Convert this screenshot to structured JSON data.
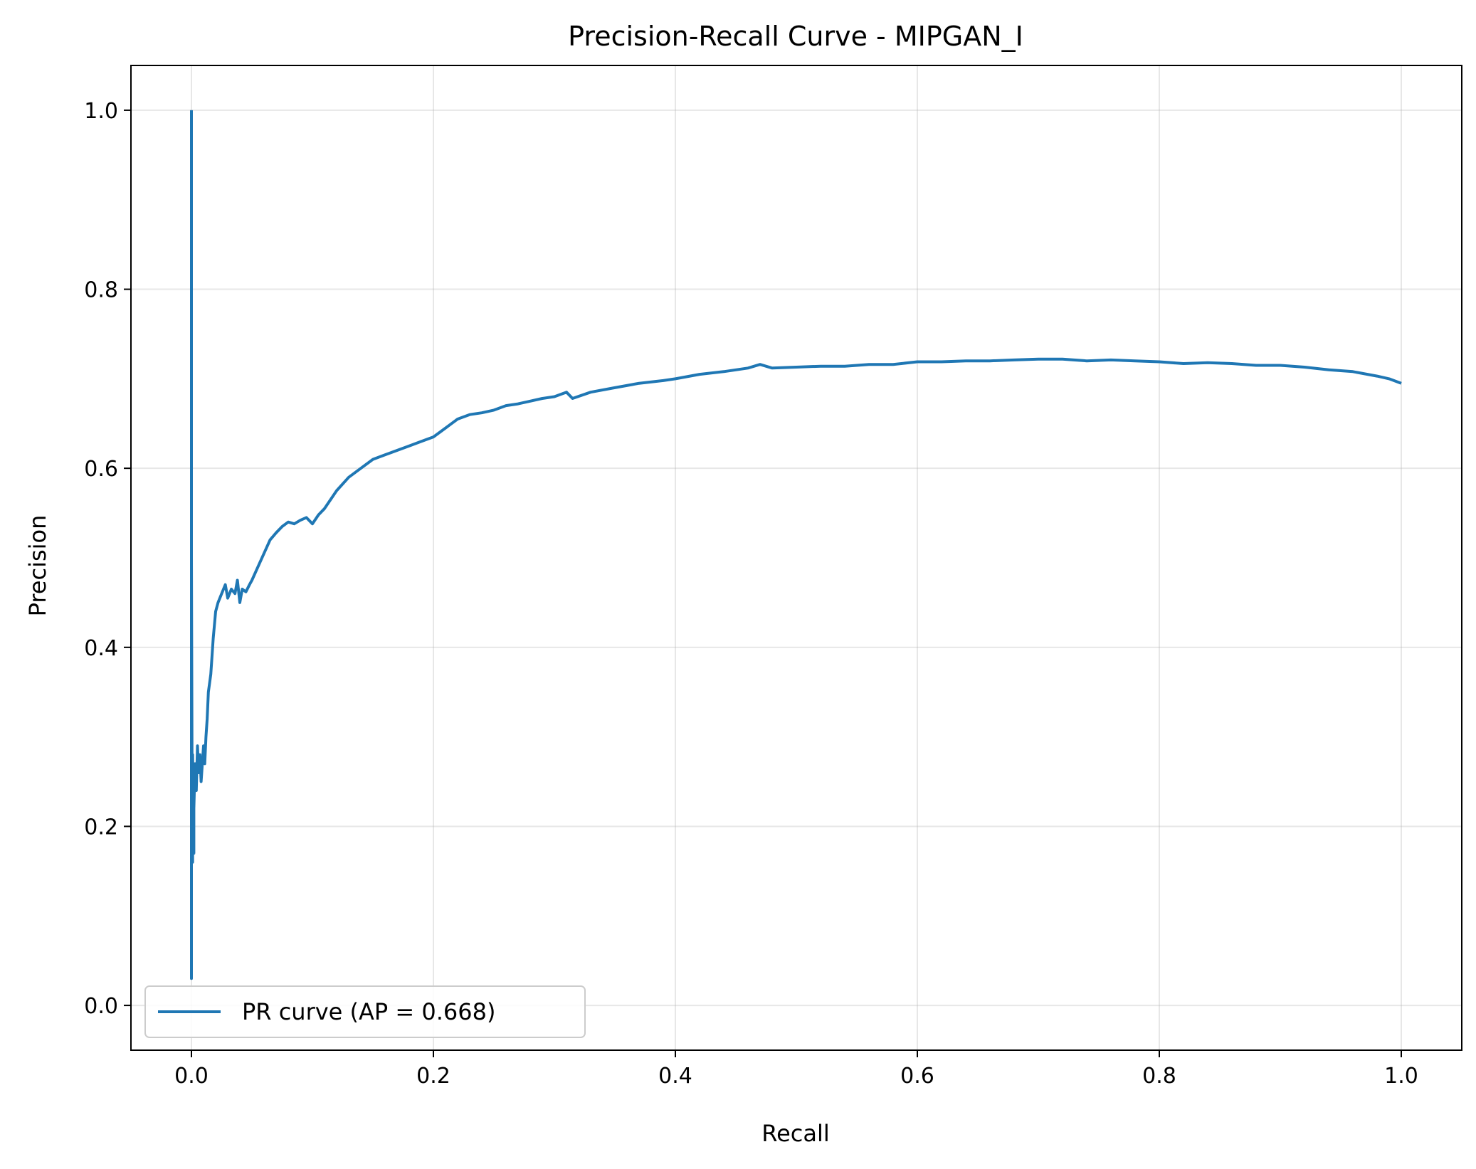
{
  "chart_data": {
    "type": "line",
    "title": "Precision-Recall Curve - MIPGAN_I",
    "xlabel": "Recall",
    "ylabel": "Precision",
    "xlim": [
      -0.05,
      1.05
    ],
    "ylim": [
      -0.05,
      1.05
    ],
    "xticks": [
      0.0,
      0.2,
      0.4,
      0.6,
      0.8,
      1.0
    ],
    "yticks": [
      0.0,
      0.2,
      0.4,
      0.6,
      0.8,
      1.0
    ],
    "xtick_labels": [
      "0.0",
      "0.2",
      "0.4",
      "0.6",
      "0.8",
      "1.0"
    ],
    "ytick_labels": [
      "0.0",
      "0.2",
      "0.4",
      "0.6",
      "0.8",
      "1.0"
    ],
    "grid": true,
    "legend_position": "lower-left",
    "series": [
      {
        "name": "PR curve (AP = 0.668)",
        "color": "#1f77b4",
        "x": [
          0.0,
          0.0,
          0.0,
          0.0005,
          0.001,
          0.001,
          0.001,
          0.002,
          0.002,
          0.003,
          0.004,
          0.005,
          0.006,
          0.007,
          0.008,
          0.009,
          0.01,
          0.011,
          0.012,
          0.013,
          0.014,
          0.016,
          0.018,
          0.02,
          0.022,
          0.025,
          0.028,
          0.03,
          0.033,
          0.036,
          0.038,
          0.04,
          0.042,
          0.045,
          0.048,
          0.05,
          0.055,
          0.06,
          0.065,
          0.07,
          0.075,
          0.08,
          0.085,
          0.09,
          0.095,
          0.1,
          0.105,
          0.11,
          0.12,
          0.13,
          0.14,
          0.15,
          0.16,
          0.17,
          0.18,
          0.19,
          0.2,
          0.21,
          0.22,
          0.23,
          0.24,
          0.25,
          0.26,
          0.27,
          0.28,
          0.29,
          0.3,
          0.31,
          0.315,
          0.33,
          0.35,
          0.37,
          0.39,
          0.4,
          0.42,
          0.44,
          0.46,
          0.47,
          0.48,
          0.5,
          0.52,
          0.54,
          0.56,
          0.58,
          0.6,
          0.62,
          0.64,
          0.66,
          0.68,
          0.7,
          0.72,
          0.74,
          0.76,
          0.78,
          0.8,
          0.82,
          0.84,
          0.86,
          0.88,
          0.9,
          0.92,
          0.94,
          0.96,
          0.98,
          0.99,
          1.0
        ],
        "y": [
          1.0,
          0.03,
          0.5,
          0.25,
          0.16,
          0.2,
          0.28,
          0.17,
          0.22,
          0.27,
          0.24,
          0.29,
          0.26,
          0.28,
          0.25,
          0.27,
          0.29,
          0.27,
          0.3,
          0.32,
          0.35,
          0.37,
          0.41,
          0.44,
          0.45,
          0.46,
          0.47,
          0.455,
          0.465,
          0.46,
          0.475,
          0.45,
          0.465,
          0.462,
          0.47,
          0.475,
          0.49,
          0.505,
          0.52,
          0.528,
          0.535,
          0.54,
          0.538,
          0.542,
          0.545,
          0.538,
          0.548,
          0.555,
          0.575,
          0.59,
          0.6,
          0.61,
          0.615,
          0.62,
          0.625,
          0.63,
          0.635,
          0.645,
          0.655,
          0.66,
          0.662,
          0.665,
          0.67,
          0.672,
          0.675,
          0.678,
          0.68,
          0.685,
          0.678,
          0.685,
          0.69,
          0.695,
          0.698,
          0.7,
          0.705,
          0.708,
          0.712,
          0.716,
          0.712,
          0.713,
          0.714,
          0.714,
          0.716,
          0.716,
          0.719,
          0.719,
          0.72,
          0.72,
          0.721,
          0.722,
          0.722,
          0.72,
          0.721,
          0.72,
          0.719,
          0.717,
          0.718,
          0.717,
          0.715,
          0.715,
          0.713,
          0.71,
          0.708,
          0.703,
          0.7,
          0.695
        ]
      }
    ]
  }
}
